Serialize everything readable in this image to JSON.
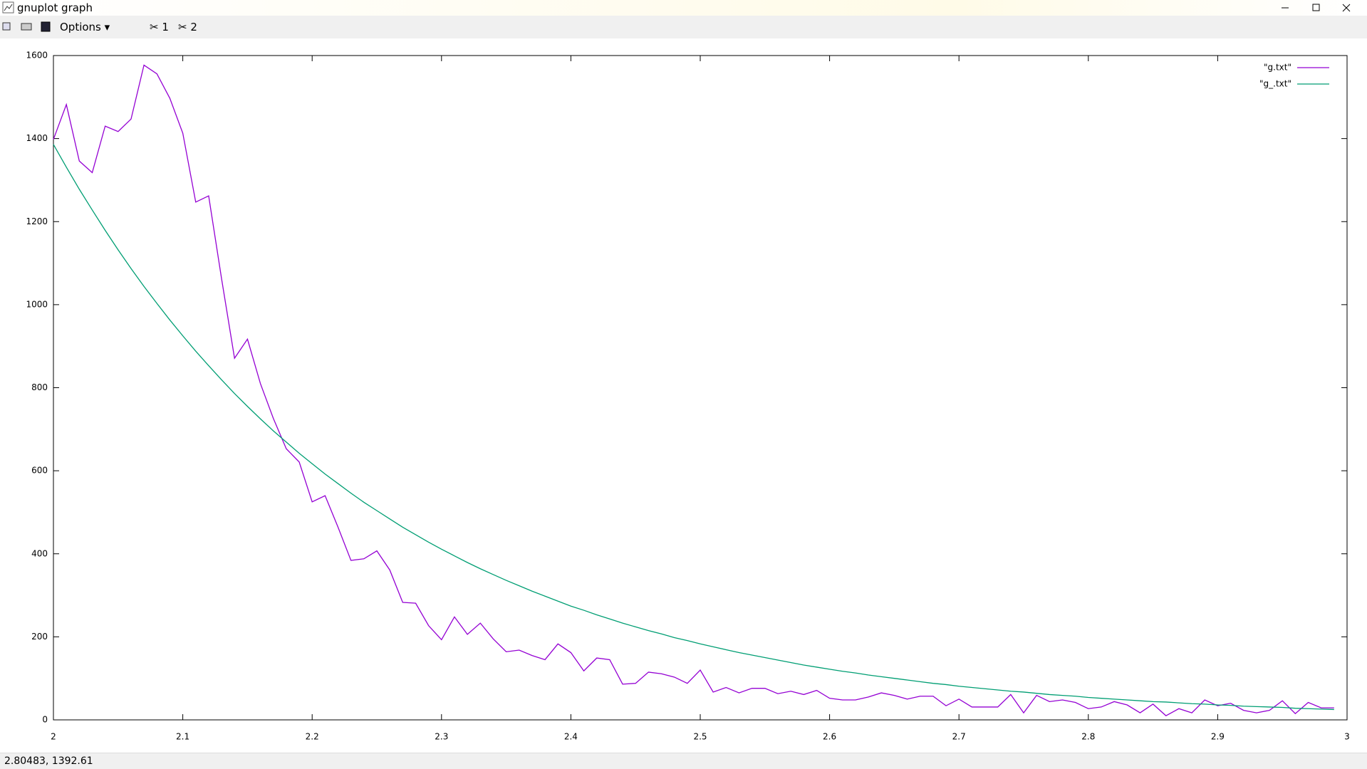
{
  "window": {
    "title": "gnuplot graph"
  },
  "toolbar": {
    "options": "Options",
    "plot1": "1",
    "plot2": "2"
  },
  "status": "2.80483,  1392.61",
  "chart_data": {
    "type": "line",
    "x": [
      2,
      2.01,
      2.02,
      2.03,
      2.04,
      2.05,
      2.06,
      2.07,
      2.08,
      2.09,
      2.1,
      2.11,
      2.12,
      2.13,
      2.14,
      2.15,
      2.16,
      2.17,
      2.18,
      2.19,
      2.2,
      2.21,
      2.22,
      2.23,
      2.24,
      2.25,
      2.26,
      2.27,
      2.28,
      2.29,
      2.3,
      2.31,
      2.32,
      2.33,
      2.34,
      2.35,
      2.36,
      2.37,
      2.38,
      2.39,
      2.4,
      2.41,
      2.42,
      2.43,
      2.44,
      2.45,
      2.46,
      2.47,
      2.48,
      2.49,
      2.5,
      2.51,
      2.52,
      2.53,
      2.54,
      2.55,
      2.56,
      2.57,
      2.58,
      2.59,
      2.6,
      2.61,
      2.62,
      2.63,
      2.64,
      2.65,
      2.66,
      2.67,
      2.68,
      2.69,
      2.7,
      2.71,
      2.72,
      2.73,
      2.74,
      2.75,
      2.76,
      2.77,
      2.78,
      2.79,
      2.8,
      2.81,
      2.82,
      2.83,
      2.84,
      2.85,
      2.86,
      2.87,
      2.88,
      2.89,
      2.9,
      2.91,
      2.92,
      2.93,
      2.94,
      2.95,
      2.96,
      2.97,
      2.98,
      2.99
    ],
    "series": [
      {
        "name": "\"g.txt\"",
        "color": "#9400d3",
        "values": [
          1398,
          1482,
          1346,
          1318,
          1430,
          1417,
          1447,
          1577,
          1556,
          1497,
          1413,
          1247,
          1262,
          1062,
          871,
          917,
          810,
          726,
          653,
          621,
          525,
          540,
          464,
          384,
          388,
          407,
          361,
          283,
          281,
          227,
          193,
          248,
          206,
          233,
          195,
          164,
          168,
          155,
          145,
          183,
          162,
          118,
          149,
          145,
          86,
          88,
          115,
          111,
          103,
          88,
          120,
          67,
          78,
          65,
          76,
          76,
          63,
          69,
          61,
          71,
          52,
          48,
          48,
          55,
          65,
          59,
          50,
          57,
          57,
          34,
          50,
          31,
          31,
          31,
          61,
          17,
          59,
          44,
          48,
          42,
          27,
          31,
          44,
          36,
          17,
          38,
          10,
          27,
          17,
          48,
          34,
          40,
          23,
          17,
          23,
          46,
          15,
          42,
          29,
          29
        ]
      },
      {
        "name": "\"g_.txt\"",
        "color": "#009e73",
        "values": [
          1386,
          1331,
          1278,
          1228,
          1179,
          1132,
          1087,
          1044,
          1003,
          963,
          925,
          888,
          853,
          819,
          786,
          755,
          725,
          696,
          669,
          642,
          617,
          592,
          569,
          546,
          524,
          504,
          484,
          464,
          446,
          428,
          411,
          395,
          379,
          364,
          350,
          336,
          323,
          310,
          298,
          286,
          274,
          264,
          253,
          243,
          233,
          224,
          215,
          207,
          198,
          191,
          183,
          176,
          169,
          162,
          156,
          150,
          144,
          138,
          132,
          127,
          122,
          117,
          113,
          108,
          104,
          100,
          96,
          92,
          88,
          85,
          81,
          78,
          75,
          72,
          69,
          67,
          64,
          61,
          59,
          57,
          54,
          52,
          50,
          48,
          46,
          44,
          43,
          41,
          39,
          38,
          36,
          35,
          33,
          32,
          31,
          30,
          28,
          27,
          26,
          25
        ]
      }
    ],
    "xlim": [
      2,
      3
    ],
    "ylim": [
      0,
      1600
    ],
    "xticks": [
      2,
      2.1,
      2.2,
      2.3,
      2.4,
      2.5,
      2.6,
      2.7,
      2.8,
      2.9,
      3
    ],
    "yticks": [
      0,
      200,
      400,
      600,
      800,
      1000,
      1200,
      1400,
      1600
    ],
    "legend": "top-right"
  }
}
